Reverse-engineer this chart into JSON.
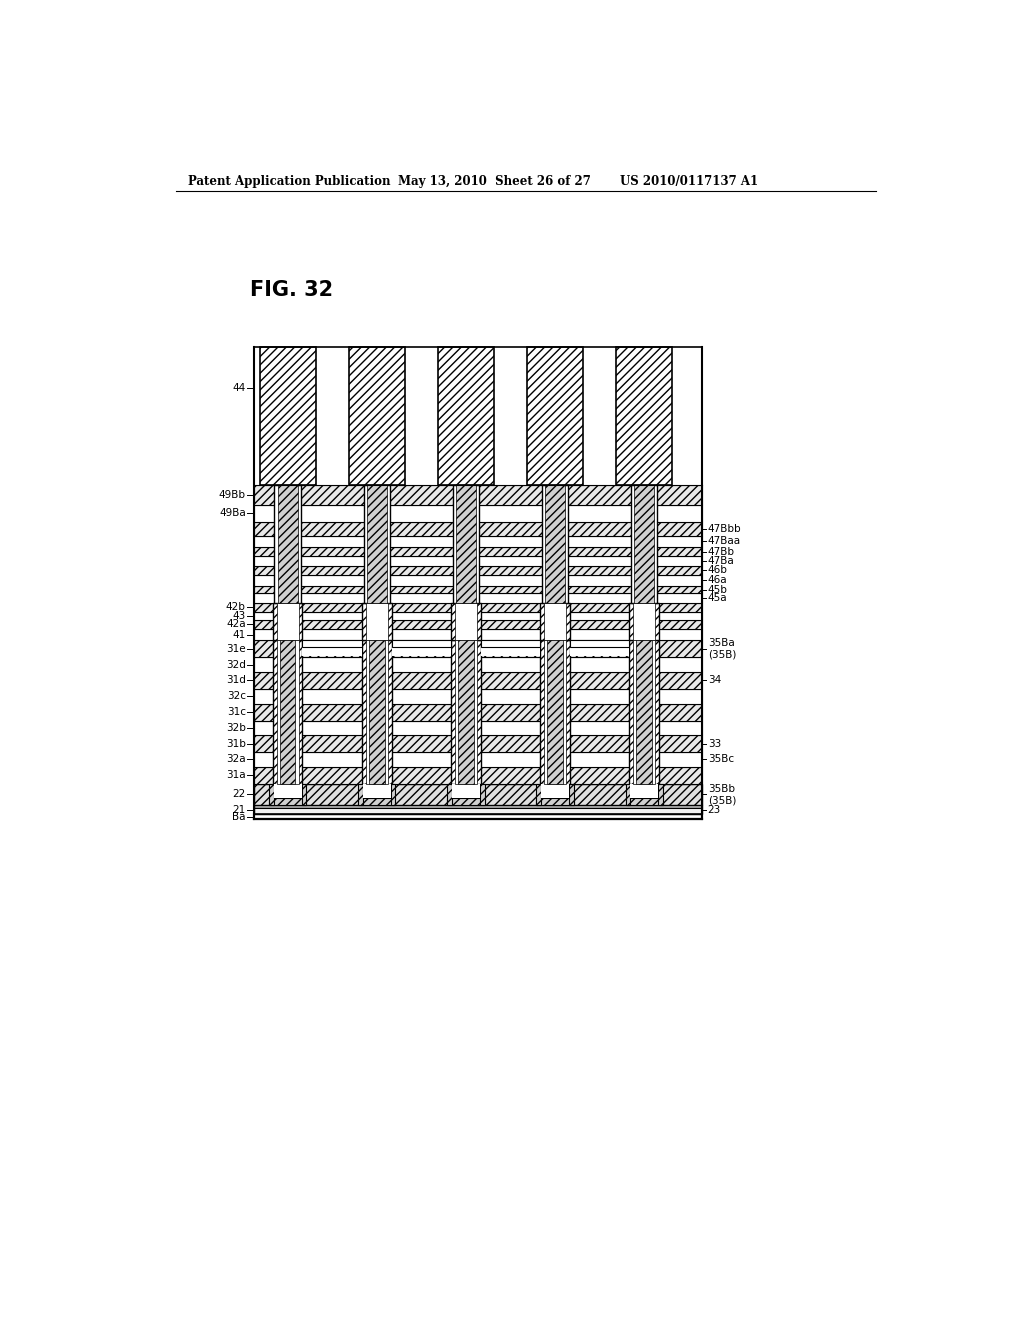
{
  "header_left": "Patent Application Publication",
  "header_center": "May 13, 2010  Sheet 26 of 27",
  "header_right": "US 2010/0117137 A1",
  "fig_label": "FIG. 32",
  "background_color": "#ffffff"
}
